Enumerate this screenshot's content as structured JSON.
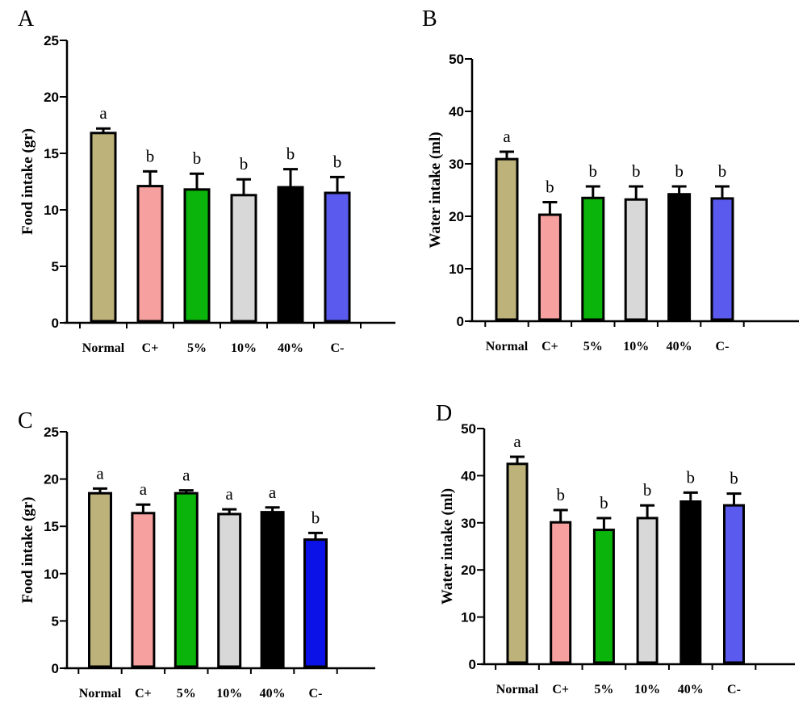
{
  "colors": {
    "Normal": "#bdb37a",
    "C+": "#f7a0a0",
    "5%": "#0ab40a",
    "10%": "#d8d8d8",
    "40%": "#000000",
    "C-_a": "#5a5aee",
    "C-_c": "#0a12e8"
  },
  "chart_data": [
    {
      "panel": "A",
      "type": "bar",
      "ylabel": "Food intake (gr)",
      "categories": [
        "Normal",
        "C+",
        "5%",
        "10%",
        "40%",
        "C-"
      ],
      "values": [
        16.8,
        12.1,
        11.8,
        11.3,
        12.0,
        11.5
      ],
      "errors": [
        0.4,
        1.3,
        1.4,
        1.4,
        1.6,
        1.4
      ],
      "letters": [
        "a",
        "b",
        "b",
        "b",
        "b",
        "b"
      ],
      "ylim": [
        0,
        25
      ],
      "yticks": [
        "0",
        "5",
        "10",
        "15",
        "20",
        "25"
      ]
    },
    {
      "panel": "B",
      "type": "bar",
      "ylabel": "Water intake (ml)",
      "categories": [
        "Normal",
        "C+",
        "5%",
        "10%",
        "40%",
        "C-"
      ],
      "values": [
        30.9,
        20.3,
        23.5,
        23.2,
        24.2,
        23.4
      ],
      "errors": [
        1.4,
        2.4,
        2.2,
        2.5,
        1.5,
        2.3
      ],
      "letters": [
        "a",
        "b",
        "b",
        "b",
        "b",
        "b"
      ],
      "ylim": [
        0,
        50
      ],
      "yticks": [
        "0",
        "10",
        "20",
        "30",
        "40",
        "50"
      ]
    },
    {
      "panel": "C",
      "type": "bar",
      "ylabel": "Food intake (gr)",
      "categories": [
        "Normal",
        "C+",
        "5%",
        "10%",
        "40%",
        "C-"
      ],
      "values": [
        18.5,
        16.4,
        18.5,
        16.3,
        16.5,
        13.6
      ],
      "errors": [
        0.5,
        0.9,
        0.3,
        0.5,
        0.5,
        0.7
      ],
      "letters": [
        "a",
        "a",
        "a",
        "a",
        "a",
        "b"
      ],
      "ylim": [
        0,
        25
      ],
      "yticks": [
        "0",
        "5",
        "10",
        "15",
        "20",
        "25"
      ]
    },
    {
      "panel": "D",
      "type": "bar",
      "ylabel": "Water intake (ml)",
      "categories": [
        "Normal",
        "C+",
        "5%",
        "10%",
        "40%",
        "C-"
      ],
      "values": [
        42.5,
        30.1,
        28.5,
        31.0,
        34.5,
        33.7
      ],
      "errors": [
        1.5,
        2.6,
        2.5,
        2.7,
        1.9,
        2.5
      ],
      "letters": [
        "a",
        "b",
        "b",
        "b",
        "b",
        "b"
      ],
      "ylim": [
        0,
        50
      ],
      "yticks": [
        "0",
        "10",
        "20",
        "30",
        "40",
        "50"
      ]
    }
  ]
}
